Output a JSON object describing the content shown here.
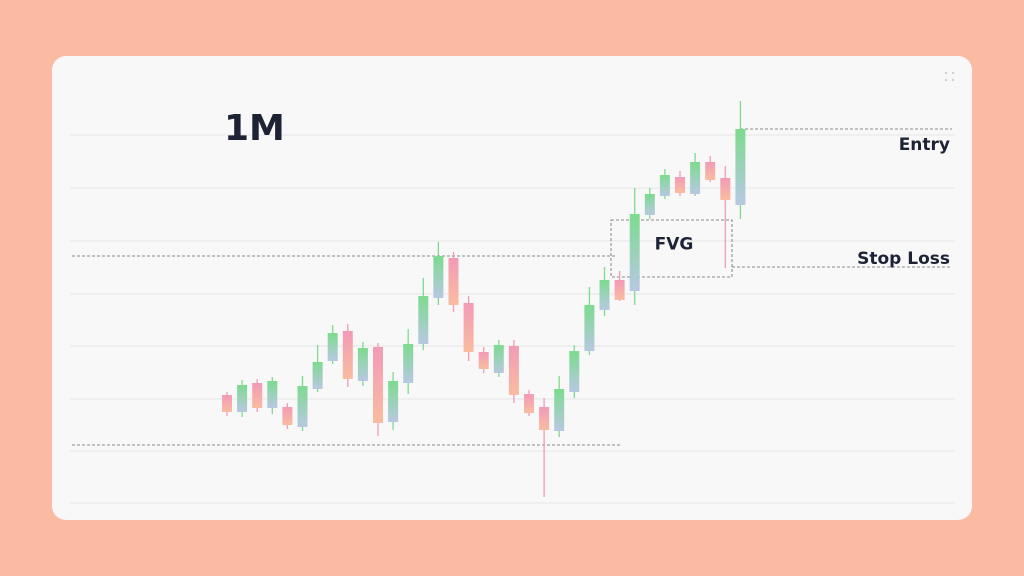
{
  "chart_data": {
    "type": "candlestick",
    "title": "1M",
    "open": [
      125,
      108,
      137,
      112,
      113,
      93,
      131,
      159,
      189,
      139,
      173,
      98,
      137,
      176,
      222,
      262,
      217,
      168,
      147,
      174,
      126,
      113,
      89,
      128,
      169,
      210,
      240,
      229,
      305,
      324,
      343,
      326,
      358,
      342,
      315
    ],
    "high": [
      128,
      140,
      141,
      143,
      117,
      144,
      175,
      195,
      196,
      178,
      177,
      148,
      191,
      242,
      278,
      268,
      224,
      173,
      180,
      180,
      130,
      122,
      144,
      175,
      233,
      253,
      249,
      332,
      332,
      351,
      349,
      367,
      364,
      354,
      419
    ],
    "low": [
      104,
      103,
      108,
      106,
      91,
      89,
      128,
      156,
      133,
      134,
      84,
      90,
      126,
      170,
      215,
      208,
      159,
      147,
      143,
      117,
      104,
      23,
      83,
      122,
      165,
      204,
      219,
      215,
      301,
      321,
      324,
      324,
      338,
      252,
      301
    ],
    "close": [
      108,
      135,
      112,
      139,
      95,
      134,
      158,
      187,
      141,
      172,
      97,
      139,
      176,
      224,
      264,
      215,
      168,
      151,
      175,
      125,
      107,
      90,
      131,
      169,
      215,
      240,
      220,
      306,
      326,
      345,
      327,
      358,
      340,
      320,
      391
    ],
    "ylim": [
      0,
      464
    ],
    "up_color": "#7ddb8f",
    "down_color": "#f29bb7",
    "levels": [
      {
        "label": "Entry",
        "value": 391
      },
      {
        "label": "Stop Loss",
        "value": 253
      }
    ],
    "dashed_levels": [
      264,
      75
    ],
    "fvg": {
      "label": "FVG",
      "high": 300,
      "low": 243
    }
  }
}
